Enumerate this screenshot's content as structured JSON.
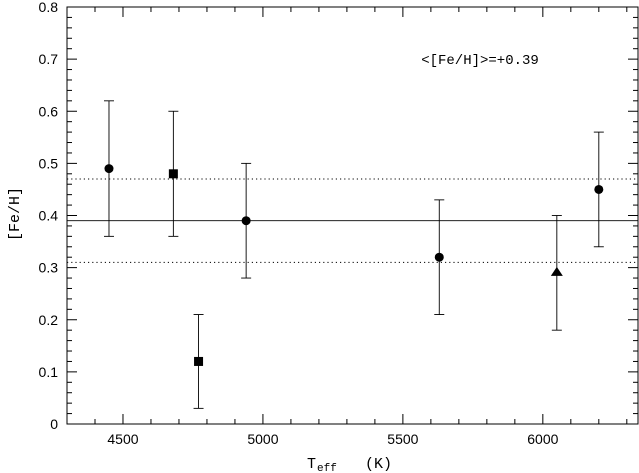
{
  "chart_data": {
    "type": "scatter",
    "title": "",
    "xlabel_main": "T",
    "xlabel_sub": "eff",
    "xlabel_unit": "(K)",
    "ylabel": "[Fe/H]",
    "annotation": "<[Fe/H]>=+0.39",
    "xlim": [
      4300,
      6340
    ],
    "ylim": [
      0,
      0.8
    ],
    "x_major_ticks": [
      4500,
      5000,
      5500,
      6000
    ],
    "x_minor_step": 100,
    "y_major_ticks": [
      0,
      0.1,
      0.2,
      0.3,
      0.4,
      0.5,
      0.6,
      0.7,
      0.8
    ],
    "y_tick_labels": [
      "0",
      "0.1",
      "0.2",
      "0.3",
      "0.4",
      "0.5",
      "0.6",
      "0.7",
      "0.8"
    ],
    "y_minor_step": 0.02,
    "x_tick_labels": [
      "4500",
      "5000",
      "5500",
      "6000"
    ],
    "mean_line": 0.39,
    "sigma_lines": [
      0.31,
      0.47
    ],
    "points": [
      {
        "x": 4450,
        "y": 0.49,
        "err": 0.13,
        "marker": "circle"
      },
      {
        "x": 4680,
        "y": 0.48,
        "err": 0.12,
        "marker": "square"
      },
      {
        "x": 4770,
        "y": 0.12,
        "err": 0.09,
        "marker": "square"
      },
      {
        "x": 4940,
        "y": 0.39,
        "err": 0.11,
        "marker": "circle"
      },
      {
        "x": 5630,
        "y": 0.32,
        "err": 0.11,
        "marker": "circle"
      },
      {
        "x": 6050,
        "y": 0.29,
        "err": 0.11,
        "marker": "triangle"
      },
      {
        "x": 6200,
        "y": 0.45,
        "err": 0.11,
        "marker": "circle"
      }
    ]
  }
}
